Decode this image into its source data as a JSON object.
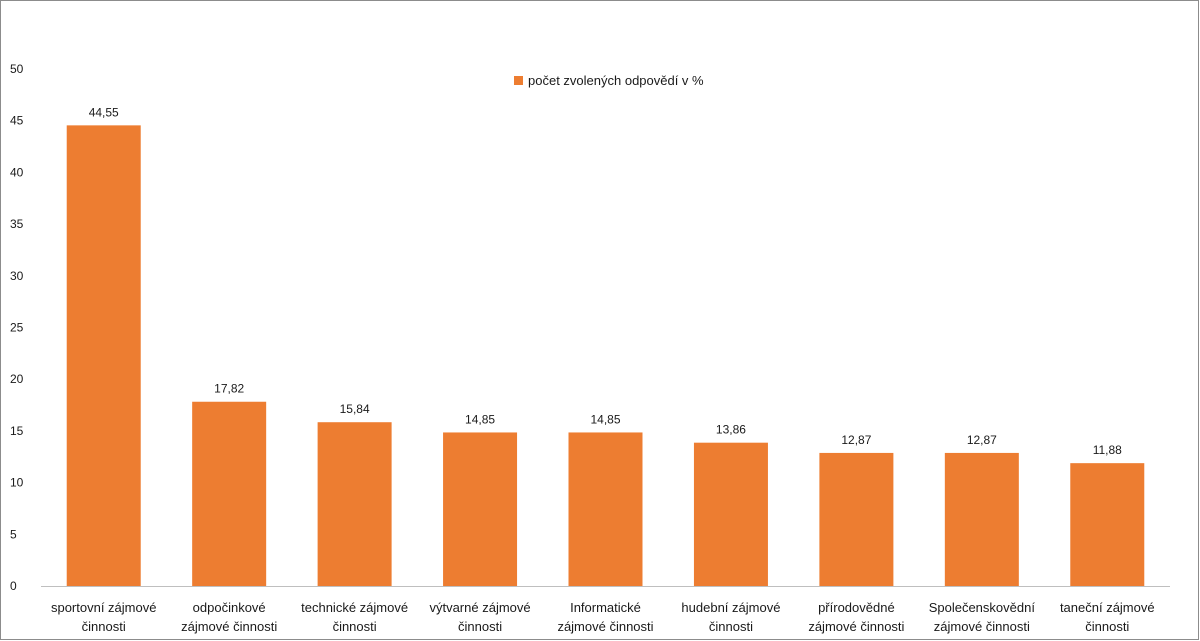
{
  "chart_data": {
    "type": "bar",
    "categories": [
      [
        "sportovní zájmové",
        "činnosti"
      ],
      [
        "odpočinkové",
        "zájmové činnosti"
      ],
      [
        "technické zájmové",
        "činnosti"
      ],
      [
        "výtvarné zájmové",
        "činnosti"
      ],
      [
        "Informatické",
        "zájmové činnosti"
      ],
      [
        "hudební zájmové",
        "činnosti"
      ],
      [
        "přírodovědné",
        "zájmové činnosti"
      ],
      [
        "Společenskovědní",
        "zájmové činnosti"
      ],
      [
        "taneční zájmové",
        "činnosti"
      ]
    ],
    "series": [
      {
        "name": "počet zvolených odpovědí v %",
        "values": [
          44.55,
          17.82,
          15.84,
          14.85,
          14.85,
          13.86,
          12.87,
          12.87,
          11.88
        ],
        "data_labels": [
          "44,55",
          "17,82",
          "15,84",
          "14,85",
          "14,85",
          "13,86",
          "12,87",
          "12,87",
          "11,88"
        ],
        "color": "#ed7d31"
      }
    ],
    "y_ticks": [
      "0",
      "5",
      "10",
      "15",
      "20",
      "25",
      "30",
      "35",
      "40",
      "45",
      "50"
    ],
    "ylim": [
      0,
      50
    ],
    "grid": false,
    "legend_position": "top-center"
  },
  "colors": {
    "bar": "#ed7d31",
    "axis": "#bfbfbf",
    "frame": "#8c8c8c"
  }
}
